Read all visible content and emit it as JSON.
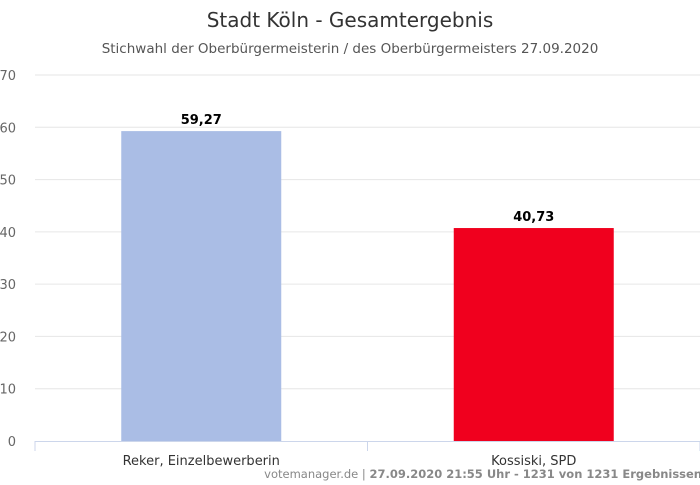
{
  "chart_data": {
    "type": "bar",
    "title": "Stadt Köln - Gesamtergebnis",
    "subtitle": "Stichwahl der Oberbürgermeisterin / des Oberbürgermeisters 27.09.2020",
    "categories": [
      "Reker, Einzelbewerberin",
      "Kossiski, SPD"
    ],
    "values": [
      59.27,
      40.73
    ],
    "data_labels": [
      "59,27",
      "40,73"
    ],
    "colors": [
      "#aabde5",
      "#f0001e"
    ],
    "xlabel": "",
    "ylabel": "",
    "ylim": [
      0,
      70
    ],
    "yticks": [
      0,
      10,
      20,
      30,
      40,
      50,
      60,
      70
    ],
    "grid": true,
    "legend": "none"
  },
  "credit": {
    "source": "votemanager.de |",
    "detail": "27.09.2020 21:55 Uhr - 1231 von 1231 Ergebnissen"
  }
}
